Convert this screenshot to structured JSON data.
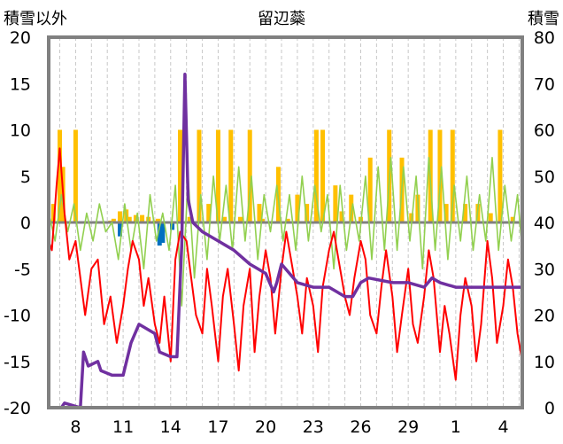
{
  "chart_data": {
    "type": "line",
    "title": "留辺蘂",
    "ylabel_left": "積雪以外",
    "ylabel_right": "積雪",
    "x_ticks": [
      "8",
      "11",
      "14",
      "17",
      "20",
      "23",
      "26",
      "29",
      "1",
      "4"
    ],
    "x_range": [
      6.3,
      36.2
    ],
    "x_tick_positions": [
      8,
      11,
      14,
      17,
      20,
      23,
      26,
      29,
      32,
      35
    ],
    "y_left": {
      "min": -20,
      "max": 20,
      "ticks": [
        -20,
        -15,
        -10,
        -5,
        0,
        5,
        10,
        15,
        20
      ]
    },
    "y_right": {
      "min": 0,
      "max": 80,
      "ticks": [
        0,
        10,
        20,
        30,
        40,
        50,
        60,
        70,
        80
      ]
    },
    "grid": "vertical-dashed",
    "legend": "none",
    "colors": {
      "precip": "#ffc000",
      "wind": "#92d050",
      "temp": "#ff0000",
      "snow": "#7030a0",
      "snowfall": "#0070c0",
      "frame": "#808080",
      "zero": "#808080"
    },
    "series": [
      {
        "key": "precip",
        "kind": "bar",
        "axis": "left",
        "x": [
          6.6,
          7.0,
          7.2,
          8.0,
          10.2,
          10.4,
          10.8,
          11.2,
          11.4,
          11.8,
          12.2,
          12.6,
          13.0,
          13.2,
          14.6,
          15.2,
          15.8,
          16.4,
          17.0,
          17.4,
          17.8,
          18.4,
          19.0,
          19.6,
          19.8,
          20.8,
          21.4,
          22.0,
          22.6,
          23.2,
          23.6,
          24.4,
          24.8,
          25.4,
          26.0,
          26.6,
          27.8,
          28.6,
          29.2,
          29.6,
          30.4,
          31.0,
          31.4,
          31.8,
          32.6,
          33.4,
          34.2,
          34.8,
          35.6
        ],
        "y": [
          2,
          10,
          6,
          10,
          0.2,
          0.4,
          1.2,
          1.4,
          0.6,
          0.8,
          0.8,
          0.6,
          0.2,
          0.4,
          10,
          0.6,
          10,
          2,
          10,
          0.6,
          10,
          0.6,
          10,
          2,
          0.4,
          6,
          0.4,
          3,
          2,
          10,
          10,
          4,
          1.2,
          3,
          0.6,
          7,
          10,
          7,
          1,
          3,
          10,
          10,
          2,
          10,
          2,
          2,
          1,
          10,
          0.6
        ]
      },
      {
        "key": "snowfall",
        "kind": "bar",
        "axis": "left",
        "x": [
          10.8,
          13.3,
          13.4,
          13.5,
          14.1
        ],
        "y": [
          -1.5,
          -2.5,
          -1.8,
          -2.2,
          -0.8
        ]
      },
      {
        "key": "wind",
        "kind": "line",
        "axis": "left",
        "x": [
          6.3,
          6.7,
          7.1,
          7.5,
          7.9,
          8.3,
          8.7,
          9.1,
          9.5,
          9.9,
          10.3,
          10.7,
          11.1,
          11.5,
          11.9,
          12.3,
          12.7,
          13.1,
          13.5,
          13.9,
          14.3,
          14.7,
          15.1,
          15.5,
          15.9,
          16.3,
          16.7,
          17.1,
          17.5,
          17.9,
          18.3,
          18.7,
          19.1,
          19.5,
          19.9,
          20.3,
          20.7,
          21.1,
          21.5,
          21.9,
          22.3,
          22.7,
          23.1,
          23.5,
          23.9,
          24.3,
          24.7,
          25.1,
          25.5,
          25.9,
          26.3,
          26.7,
          27.1,
          27.5,
          27.9,
          28.3,
          28.7,
          29.1,
          29.5,
          29.9,
          30.3,
          30.7,
          31.1,
          31.5,
          31.9,
          32.3,
          32.7,
          33.1,
          33.5,
          33.9,
          34.3,
          34.7,
          35.1,
          35.5,
          35.9,
          36.2
        ],
        "y": [
          1,
          -2,
          3,
          -1,
          2,
          -3,
          1,
          -2,
          2,
          -1,
          0,
          -4,
          2,
          -3,
          1,
          -5,
          3,
          -2,
          1,
          -3,
          4,
          -9,
          5,
          -6,
          3,
          -4,
          5,
          -2,
          4,
          -3,
          6,
          -2,
          5,
          -4,
          3,
          -1,
          4,
          -2,
          3,
          -3,
          5,
          -2,
          4,
          -1,
          3,
          -5,
          4,
          -3,
          2,
          -2,
          5,
          -4,
          6,
          -3,
          7,
          -3,
          6,
          -2,
          5,
          -5,
          7,
          -3,
          6,
          -4,
          4,
          -2,
          5,
          -3,
          3,
          -2,
          7,
          -3,
          4,
          -2,
          3,
          -3
        ]
      },
      {
        "key": "temp",
        "kind": "line",
        "axis": "left",
        "x": [
          6.3,
          6.5,
          6.8,
          7.0,
          7.3,
          7.6,
          8.0,
          8.3,
          8.6,
          9.0,
          9.4,
          9.8,
          10.2,
          10.6,
          11.0,
          11.3,
          11.6,
          12.0,
          12.3,
          12.6,
          13.0,
          13.3,
          13.6,
          14.0,
          14.3,
          14.6,
          15.0,
          15.3,
          15.6,
          16.0,
          16.3,
          16.6,
          17.0,
          17.3,
          17.6,
          18.0,
          18.3,
          18.6,
          19.0,
          19.3,
          19.6,
          20.0,
          20.3,
          20.6,
          21.0,
          21.3,
          21.6,
          22.0,
          22.3,
          22.6,
          23.0,
          23.3,
          23.6,
          24.0,
          24.3,
          24.6,
          25.0,
          25.3,
          25.6,
          26.0,
          26.3,
          26.6,
          27.0,
          27.3,
          27.6,
          28.0,
          28.3,
          28.6,
          29.0,
          29.3,
          29.6,
          30.0,
          30.3,
          30.6,
          31.0,
          31.3,
          31.6,
          32.0,
          32.3,
          32.6,
          33.0,
          33.3,
          33.6,
          34.0,
          34.3,
          34.6,
          35.0,
          35.3,
          35.6,
          35.9,
          36.2
        ],
        "y": [
          -2,
          -3,
          4,
          8,
          1,
          -4,
          -2,
          -6,
          -10,
          -5,
          -4,
          -11,
          -8,
          -13,
          -9,
          -5,
          -2,
          -4,
          -9,
          -6,
          -11,
          -13,
          -8,
          -15,
          -4,
          -1,
          -2,
          -6,
          -10,
          -12,
          -5,
          -9,
          -15,
          -8,
          -5,
          -11,
          -16,
          -9,
          -5,
          -14,
          -8,
          -3,
          -6,
          -12,
          -5,
          -1,
          -4,
          -8,
          -12,
          -6,
          -9,
          -14,
          -7,
          -3,
          -1,
          -4,
          -8,
          -10,
          -6,
          -2,
          -4,
          -10,
          -12,
          -7,
          -3,
          -8,
          -14,
          -10,
          -5,
          -11,
          -13,
          -8,
          -3,
          -6,
          -14,
          -9,
          -12,
          -17,
          -10,
          -6,
          -9,
          -15,
          -11,
          -2,
          -6,
          -13,
          -9,
          -4,
          -7,
          -12,
          -15
        ]
      },
      {
        "key": "snow",
        "kind": "line",
        "axis": "right",
        "x": [
          6.3,
          7.1,
          7.3,
          8.3,
          8.5,
          8.8,
          9.4,
          9.6,
          10.3,
          10.6,
          11.0,
          11.5,
          12.0,
          13.0,
          13.3,
          14.0,
          14.4,
          14.7,
          14.9,
          15.1,
          15.4,
          16.0,
          17.0,
          18.0,
          19.0,
          20.0,
          20.5,
          20.7,
          21.0,
          22.0,
          23.0,
          24.0,
          24.5,
          25.0,
          25.5,
          26.0,
          26.5,
          28.0,
          29.0,
          30.0,
          30.5,
          31.0,
          32.0,
          33.0,
          34.0,
          35.0,
          36.2
        ],
        "y": [
          0,
          0,
          1,
          0,
          12,
          9,
          10,
          8,
          7,
          7,
          7,
          14,
          18,
          16,
          12,
          11,
          11,
          35,
          72,
          45,
          40,
          38,
          36,
          34,
          31,
          29,
          25,
          27,
          31,
          27,
          26,
          26,
          25,
          24,
          24,
          27,
          28,
          27,
          27,
          26,
          28,
          27,
          26,
          26,
          26,
          26,
          26
        ]
      }
    ]
  }
}
